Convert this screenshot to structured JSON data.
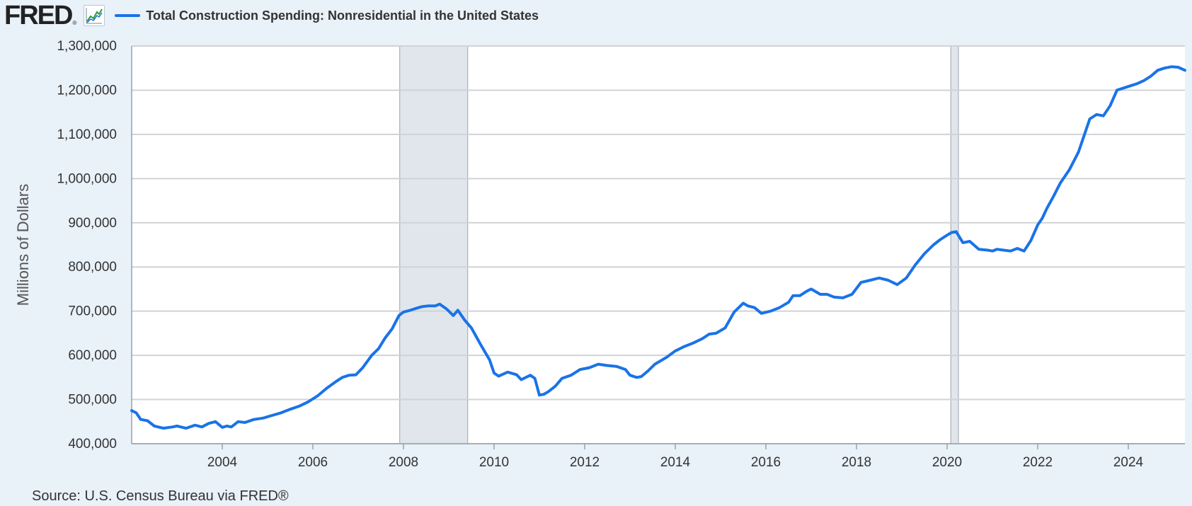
{
  "header": {
    "logo_text": "FRED",
    "logo_mark": "®",
    "graph_icon": "trend-line-icon"
  },
  "colors": {
    "series": "#1a73e8",
    "recession": "#e1e6ec",
    "grid": "#cfd3d7",
    "plot_bg": "#ffffff",
    "page_bg": "#e9f1f9"
  },
  "source": "Source: U.S. Census Bureau via FRED®",
  "chart_data": {
    "type": "line",
    "ylabel": "Millions of Dollars",
    "xlabel": "",
    "xlim": [
      2002.0,
      2025.25
    ],
    "ylim": [
      400000,
      1300000
    ],
    "yticks": [
      400000,
      500000,
      600000,
      700000,
      800000,
      900000,
      1000000,
      1100000,
      1200000,
      1300000
    ],
    "ytick_labels": [
      "400,000",
      "500,000",
      "600,000",
      "700,000",
      "800,000",
      "900,000",
      "1,000,000",
      "1,100,000",
      "1,200,000",
      "1,300,000"
    ],
    "xticks": [
      2004,
      2006,
      2008,
      2010,
      2012,
      2014,
      2016,
      2018,
      2020,
      2022,
      2024
    ],
    "xtick_labels": [
      "2004",
      "2006",
      "2008",
      "2010",
      "2012",
      "2014",
      "2016",
      "2018",
      "2020",
      "2022",
      "2024"
    ],
    "grid": true,
    "recessions": [
      [
        2007.917,
        2009.417
      ],
      [
        2020.083,
        2020.25
      ]
    ],
    "series": [
      {
        "name": "Total Construction Spending: Nonresidential in the United States",
        "color": "#1a73e8",
        "x": [
          2002.0,
          2002.1,
          2002.2,
          2002.35,
          2002.5,
          2002.7,
          2002.9,
          2003.0,
          2003.2,
          2003.4,
          2003.55,
          2003.7,
          2003.85,
          2004.0,
          2004.1,
          2004.2,
          2004.35,
          2004.5,
          2004.7,
          2004.9,
          2005.1,
          2005.3,
          2005.5,
          2005.7,
          2005.9,
          2006.1,
          2006.3,
          2006.5,
          2006.65,
          2006.8,
          2006.95,
          2007.1,
          2007.3,
          2007.45,
          2007.6,
          2007.75,
          2007.9,
          2008.0,
          2008.15,
          2008.3,
          2008.4,
          2008.55,
          2008.7,
          2008.8,
          2008.95,
          2009.1,
          2009.2,
          2009.35,
          2009.5,
          2009.7,
          2009.9,
          2010.0,
          2010.1,
          2010.3,
          2010.5,
          2010.6,
          2010.8,
          2010.9,
          2011.0,
          2011.1,
          2011.2,
          2011.35,
          2011.5,
          2011.7,
          2011.9,
          2012.1,
          2012.3,
          2012.5,
          2012.7,
          2012.9,
          2013.0,
          2013.15,
          2013.25,
          2013.4,
          2013.55,
          2013.8,
          2014.0,
          2014.2,
          2014.4,
          2014.6,
          2014.75,
          2014.9,
          2015.1,
          2015.3,
          2015.5,
          2015.6,
          2015.75,
          2015.9,
          2016.1,
          2016.3,
          2016.5,
          2016.6,
          2016.75,
          2016.9,
          2017.0,
          2017.2,
          2017.35,
          2017.5,
          2017.7,
          2017.9,
          2018.1,
          2018.3,
          2018.5,
          2018.7,
          2018.9,
          2019.1,
          2019.3,
          2019.5,
          2019.7,
          2019.85,
          2020.0,
          2020.1,
          2020.2,
          2020.35,
          2020.5,
          2020.7,
          2020.9,
          2021.0,
          2021.1,
          2021.25,
          2021.4,
          2021.55,
          2021.7,
          2021.85,
          2022.0,
          2022.1,
          2022.2,
          2022.35,
          2022.5,
          2022.7,
          2022.9,
          2023.0,
          2023.15,
          2023.3,
          2023.45,
          2023.6,
          2023.75,
          2023.9,
          2024.05,
          2024.2,
          2024.35,
          2024.5,
          2024.65,
          2024.8,
          2024.95,
          2025.1,
          2025.25
        ],
        "y": [
          475000,
          470000,
          455000,
          452000,
          440000,
          435000,
          438000,
          440000,
          435000,
          442000,
          438000,
          446000,
          450000,
          437000,
          440000,
          438000,
          450000,
          448000,
          455000,
          458000,
          464000,
          470000,
          478000,
          485000,
          495000,
          508000,
          525000,
          540000,
          550000,
          555000,
          556000,
          572000,
          600000,
          615000,
          640000,
          660000,
          690000,
          698000,
          702000,
          707000,
          710000,
          712000,
          712000,
          716000,
          705000,
          690000,
          702000,
          680000,
          662000,
          625000,
          590000,
          560000,
          553000,
          562000,
          556000,
          545000,
          555000,
          548000,
          510000,
          512000,
          518000,
          530000,
          548000,
          555000,
          568000,
          572000,
          580000,
          577000,
          575000,
          568000,
          555000,
          550000,
          552000,
          565000,
          580000,
          595000,
          610000,
          620000,
          628000,
          638000,
          648000,
          650000,
          662000,
          698000,
          718000,
          712000,
          708000,
          695000,
          700000,
          708000,
          720000,
          735000,
          735000,
          745000,
          750000,
          738000,
          738000,
          732000,
          730000,
          738000,
          765000,
          770000,
          775000,
          770000,
          760000,
          775000,
          805000,
          830000,
          850000,
          862000,
          872000,
          878000,
          880000,
          855000,
          858000,
          840000,
          838000,
          836000,
          840000,
          838000,
          836000,
          842000,
          836000,
          860000,
          895000,
          910000,
          932000,
          960000,
          990000,
          1020000,
          1060000,
          1090000,
          1135000,
          1145000,
          1142000,
          1165000,
          1200000,
          1205000,
          1210000,
          1215000,
          1222000,
          1232000,
          1245000,
          1250000,
          1253000,
          1252000,
          1245000
        ]
      }
    ]
  }
}
